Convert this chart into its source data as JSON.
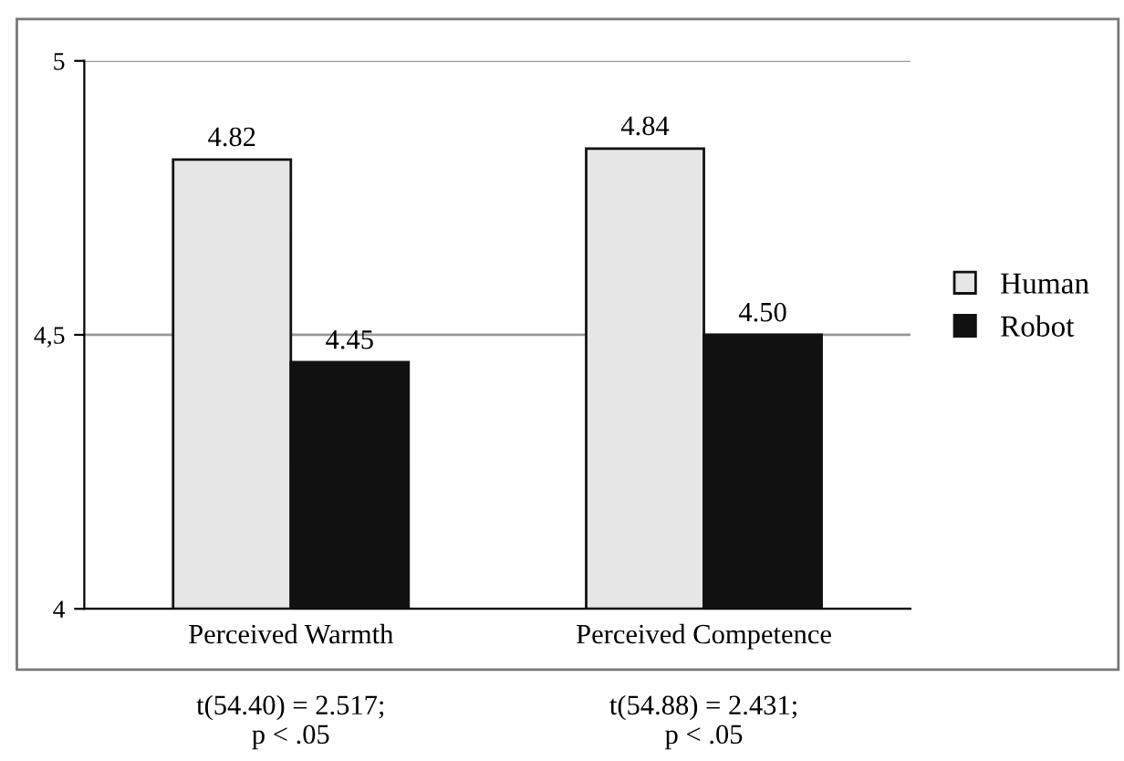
{
  "chart_data": {
    "type": "bar",
    "categories": [
      "Perceived Warmth",
      "Perceived Competence"
    ],
    "series": [
      {
        "name": "Human",
        "color": "#e6e6e6",
        "values": [
          4.82,
          4.84
        ],
        "value_labels": [
          "4.82",
          "4.84"
        ]
      },
      {
        "name": "Robot",
        "color": "#111111",
        "values": [
          4.45,
          4.5
        ],
        "value_labels": [
          "4.45",
          "4.50"
        ]
      }
    ],
    "ylim": [
      4,
      5
    ],
    "yticks": [
      4,
      {
        "value": 4.5,
        "label": "4,5"
      },
      5
    ],
    "grid": "y",
    "legend": "right",
    "annotations": [
      "t(54.40) = 2.517;\np < .05",
      "t(54.88) = 2.431;\np < .05"
    ]
  }
}
